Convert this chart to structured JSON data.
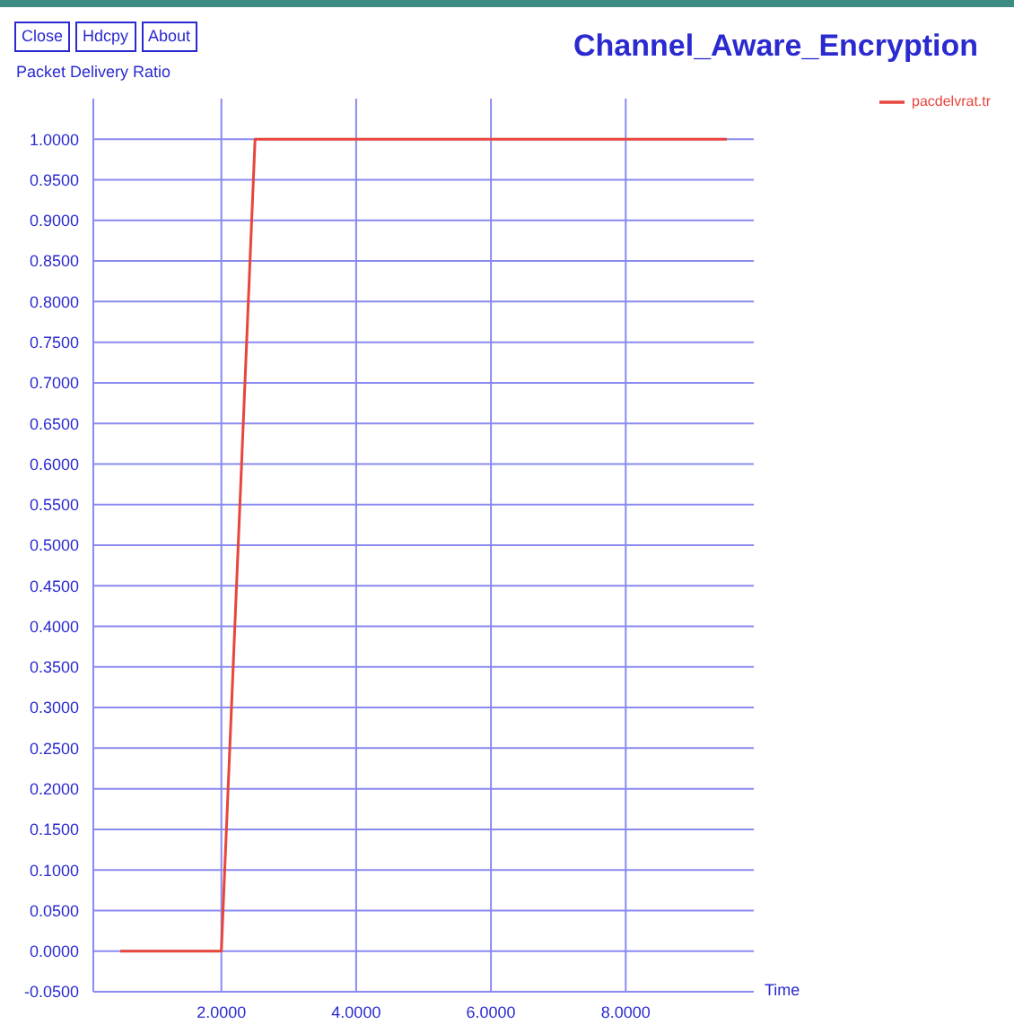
{
  "chart_data": {
    "type": "line",
    "title": "Channel_Aware_Encryption",
    "ylabel": "Packet Delivery Ratio",
    "xlabel": "Time",
    "annotations": [
      "Close",
      "Hdcpy",
      "About"
    ],
    "x": [
      0.5,
      2.0,
      2.5,
      9.5
    ],
    "series": [
      {
        "name": "pacdelvrat.tr",
        "color": "#e8453c",
        "values": [
          0,
          0,
          1,
          1
        ]
      }
    ],
    "xlim": [
      0.1,
      9.9
    ],
    "xticks": [
      {
        "value": 2,
        "label": "2.0000"
      },
      {
        "value": 4,
        "label": "4.0000"
      },
      {
        "value": 6,
        "label": "6.0000"
      },
      {
        "value": 8,
        "label": "8.0000"
      }
    ],
    "ylim": [
      -0.05,
      1.05
    ],
    "yticks": [
      {
        "value": -0.05,
        "label": "-0.0500"
      },
      {
        "value": 0,
        "label": "0.0000"
      },
      {
        "value": 0.05,
        "label": "0.0500"
      },
      {
        "value": 0.1,
        "label": "0.1000"
      },
      {
        "value": 0.15,
        "label": "0.1500"
      },
      {
        "value": 0.2,
        "label": "0.2000"
      },
      {
        "value": 0.25,
        "label": "0.2500"
      },
      {
        "value": 0.3,
        "label": "0.3000"
      },
      {
        "value": 0.35,
        "label": "0.3500"
      },
      {
        "value": 0.4,
        "label": "0.4000"
      },
      {
        "value": 0.45,
        "label": "0.4500"
      },
      {
        "value": 0.5,
        "label": "0.5000"
      },
      {
        "value": 0.55,
        "label": "0.5500"
      },
      {
        "value": 0.6,
        "label": "0.6000"
      },
      {
        "value": 0.65,
        "label": "0.6500"
      },
      {
        "value": 0.7,
        "label": "0.7000"
      },
      {
        "value": 0.75,
        "label": "0.7500"
      },
      {
        "value": 0.8,
        "label": "0.8000"
      },
      {
        "value": 0.85,
        "label": "0.8500"
      },
      {
        "value": 0.9,
        "label": "0.9000"
      },
      {
        "value": 0.95,
        "label": "0.9500"
      },
      {
        "value": 1,
        "label": "1.0000"
      }
    ],
    "grid": true,
    "legend": "top right",
    "marker": "none",
    "line_style": "solid"
  }
}
